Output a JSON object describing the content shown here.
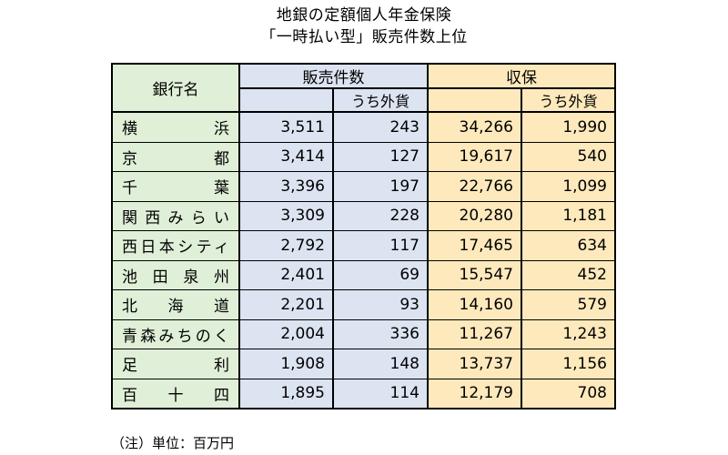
{
  "title": {
    "line1": "地銀の定額個人年金保険",
    "line2": "「一時払い型」販売件数上位"
  },
  "headers": {
    "bank_name": "銀行名",
    "sales_count": "販売件数",
    "revenue": "収保",
    "of_which_foreign": "うち外貨"
  },
  "rows": [
    {
      "bank": "横　浜",
      "sales": "3,511",
      "sales_fx": "243",
      "rev": "34,266",
      "rev_fx": "1,990"
    },
    {
      "bank": "京　都",
      "sales": "3,414",
      "sales_fx": "127",
      "rev": "19,617",
      "rev_fx": "540"
    },
    {
      "bank": "千　葉",
      "sales": "3,396",
      "sales_fx": "197",
      "rev": "22,766",
      "rev_fx": "1,099"
    },
    {
      "bank": "関西みらい",
      "sales": "3,309",
      "sales_fx": "228",
      "rev": "20,280",
      "rev_fx": "1,181"
    },
    {
      "bank": "西日本シティ",
      "sales": "2,792",
      "sales_fx": "117",
      "rev": "17,465",
      "rev_fx": "634"
    },
    {
      "bank": "池田泉州",
      "sales": "2,401",
      "sales_fx": "69",
      "rev": "15,547",
      "rev_fx": "452"
    },
    {
      "bank": "北海道",
      "sales": "2,201",
      "sales_fx": "93",
      "rev": "14,160",
      "rev_fx": "579"
    },
    {
      "bank": "青森みちのく",
      "sales": "2,004",
      "sales_fx": "336",
      "rev": "11,267",
      "rev_fx": "1,243"
    },
    {
      "bank": "足　利",
      "sales": "1,908",
      "sales_fx": "148",
      "rev": "13,737",
      "rev_fx": "1,156"
    },
    {
      "bank": "百十四",
      "sales": "1,895",
      "sales_fx": "114",
      "rev": "12,179",
      "rev_fx": "708"
    }
  ],
  "note": "（注）単位：百万円",
  "colors": {
    "bank_column": "#e0efd8",
    "sales_columns": "#dce4f2",
    "revenue_columns": "#fde9bc"
  }
}
